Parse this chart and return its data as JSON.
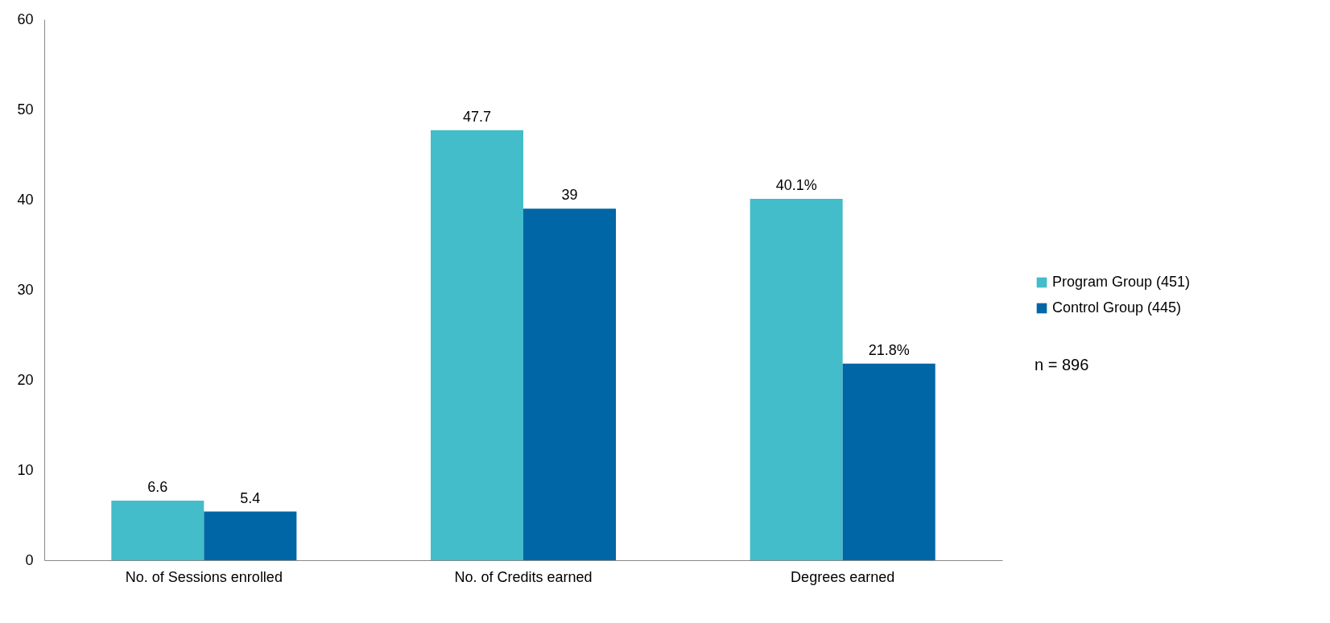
{
  "chart_data": {
    "type": "bar",
    "categories": [
      "No. of Sessions enrolled",
      "No. of Credits earned",
      "Degrees earned"
    ],
    "series": [
      {
        "name": "Program Group (451)",
        "color": "#42bdc9",
        "values": [
          6.6,
          47.7,
          40.1
        ],
        "value_labels": [
          "6.6",
          "47.7",
          "40.1%"
        ]
      },
      {
        "name": "Control Group (445)",
        "color": "#0066a5",
        "values": [
          5.4,
          39,
          21.8
        ],
        "value_labels": [
          "5.4",
          "39",
          "21.8%"
        ]
      }
    ],
    "ylim": [
      0,
      60
    ],
    "yticks": [
      0,
      10,
      20,
      30,
      40,
      50,
      60
    ],
    "grid": false,
    "legend": "right",
    "annotations": [
      "n = 896"
    ]
  }
}
